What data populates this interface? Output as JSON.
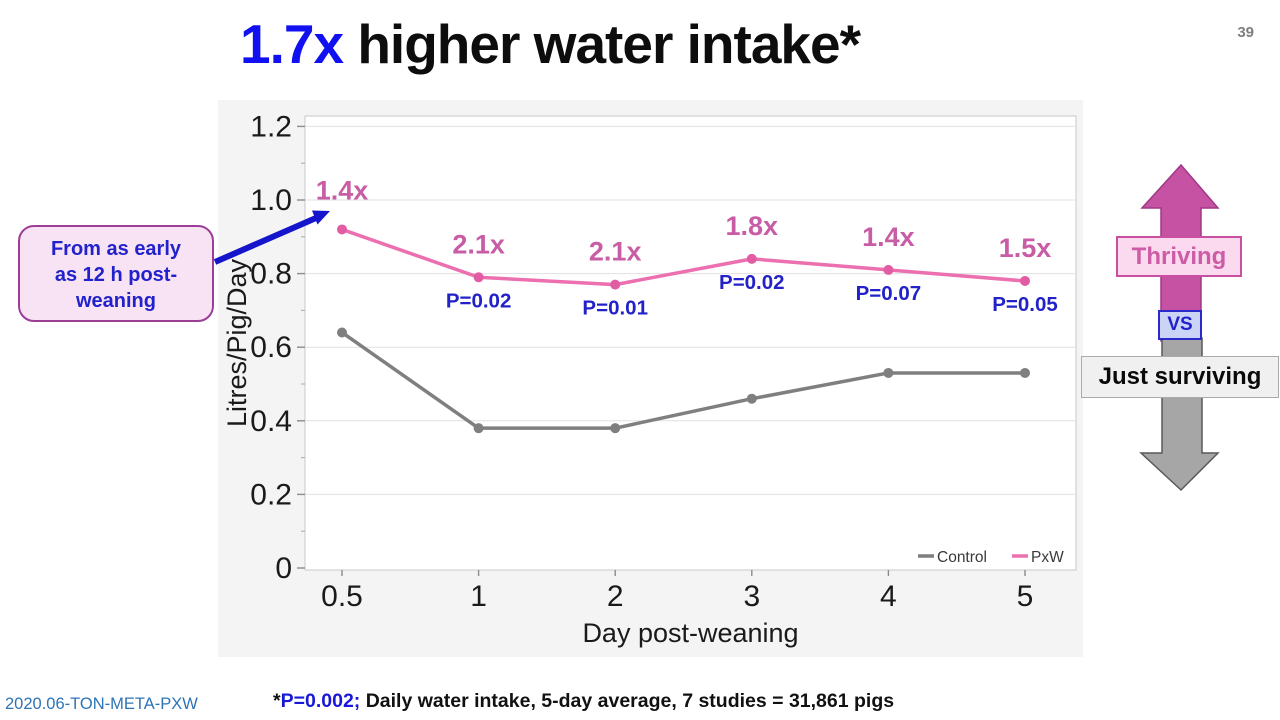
{
  "page_number": "39",
  "title": {
    "highlight": "1.7x",
    "rest": " higher water intake*"
  },
  "callout": {
    "lines": [
      "From as early",
      "as 12 h post-",
      "weaning"
    ]
  },
  "chart_data": {
    "type": "line",
    "xlabel": "Day post-weaning",
    "ylabel": "Litres/Pig/Day",
    "x_ticks": [
      "0.5",
      "1",
      "2",
      "3",
      "4",
      "5"
    ],
    "y_ticks": [
      "0",
      "0.2",
      "0.4",
      "0.6",
      "0.8",
      "1.0",
      "1.2"
    ],
    "ylim": [
      0,
      1.23
    ],
    "grid": true,
    "legend_position": "bottom-right-inside",
    "series": [
      {
        "name": "Control",
        "color": "#7f7f7f",
        "marker_color": "#7f7f7f",
        "values": [
          0.64,
          0.38,
          0.38,
          0.46,
          0.53,
          0.53
        ]
      },
      {
        "name": "PxW",
        "color": "#ec6faf",
        "marker_color": "#e25ca4",
        "values": [
          0.92,
          0.79,
          0.77,
          0.84,
          0.81,
          0.78
        ]
      }
    ],
    "annotations": {
      "multipliers": {
        "color": "#c85ca5",
        "labels": [
          "1.4x",
          "2.1x",
          "2.1x",
          "1.8x",
          "1.4x",
          "1.5x"
        ]
      },
      "p_values": {
        "color": "#2222c8",
        "labels": [
          "",
          "P=0.02",
          "P=0.01",
          "P=0.02",
          "P=0.07",
          "P=0.05"
        ]
      }
    }
  },
  "right_graphic": {
    "thriving_label": "Thriving",
    "vs_label": "VS",
    "surviving_label": "Just surviving",
    "up_arrow_color": "#c552a3",
    "up_arrow_border": "#a03787",
    "down_arrow_color": "#a6a6a6",
    "down_arrow_border": "#595959"
  },
  "footer": {
    "code": "2020.06-TON-META-PXW"
  },
  "footnote": {
    "star": "*",
    "pvalue": "P=0.002;",
    "rest": " Daily water intake, 5-day average, 7 studies = 31,861 pigs"
  },
  "colors": {
    "accent_blue": "#1010f0",
    "callout_blue": "#2222cc",
    "arrow_blue": "#1515cc",
    "footer_blue": "#2e74b5"
  }
}
